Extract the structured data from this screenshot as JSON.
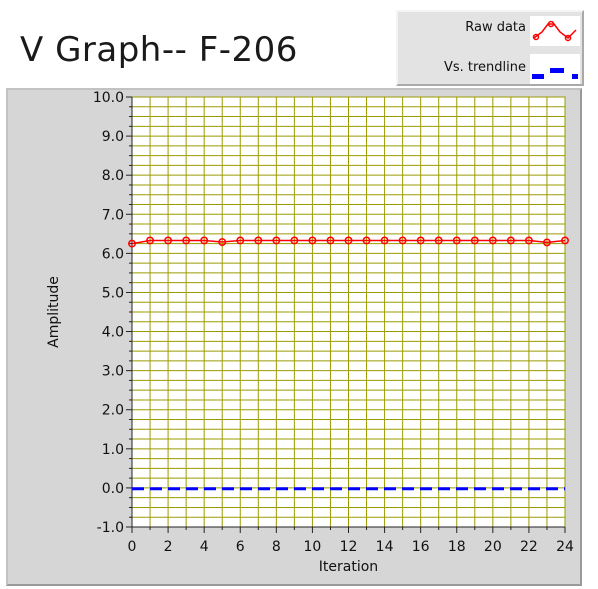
{
  "chart_data": {
    "type": "line",
    "title": "V Graph-- F-206",
    "xlabel": "Iteration",
    "ylabel": "Amplitude",
    "xlim": [
      0,
      24
    ],
    "ylim": [
      -1.0,
      10.0
    ],
    "x_ticks": [
      "0",
      "2",
      "4",
      "6",
      "8",
      "10",
      "12",
      "14",
      "16",
      "18",
      "20",
      "22",
      "24"
    ],
    "y_ticks": [
      "-1.0",
      "0.0",
      "1.0",
      "2.0",
      "3.0",
      "4.0",
      "5.0",
      "6.0",
      "7.0",
      "8.0",
      "9.0",
      "10.0"
    ],
    "grid": true,
    "legend_position": "top-right",
    "series": [
      {
        "name": "Raw data",
        "color": "#ff0000",
        "style": "solid line with circle markers",
        "x": [
          0,
          1,
          2,
          3,
          4,
          5,
          6,
          7,
          8,
          9,
          10,
          11,
          12,
          13,
          14,
          15,
          16,
          17,
          18,
          19,
          20,
          21,
          22,
          23,
          24
        ],
        "values": [
          6.25,
          6.33,
          6.33,
          6.33,
          6.33,
          6.29,
          6.33,
          6.33,
          6.33,
          6.33,
          6.33,
          6.33,
          6.33,
          6.33,
          6.33,
          6.33,
          6.33,
          6.33,
          6.33,
          6.33,
          6.33,
          6.33,
          6.33,
          6.28,
          6.33
        ]
      },
      {
        "name": "Vs. trendline",
        "color": "#0000ff",
        "style": "dashed",
        "x": [
          0,
          1,
          2,
          3,
          4,
          5,
          6,
          7,
          8,
          9,
          10,
          11,
          12,
          13,
          14,
          15,
          16,
          17,
          18,
          19,
          20,
          21,
          22,
          23,
          24
        ],
        "values": [
          -0.02,
          -0.02,
          -0.02,
          -0.02,
          -0.02,
          -0.02,
          -0.02,
          -0.02,
          -0.02,
          -0.02,
          -0.02,
          -0.02,
          -0.02,
          -0.02,
          -0.02,
          -0.02,
          -0.02,
          -0.02,
          -0.02,
          -0.02,
          -0.02,
          -0.02,
          -0.02,
          -0.02,
          -0.02
        ]
      }
    ]
  },
  "colors": {
    "plot_background": "#ffffff",
    "grid": "#9b9b00",
    "panel": "#d6d6d6"
  }
}
